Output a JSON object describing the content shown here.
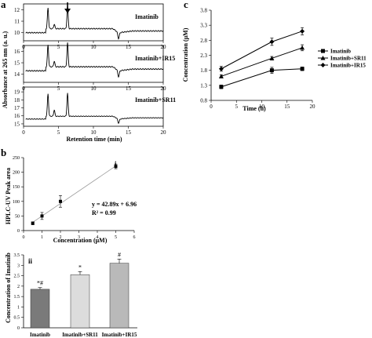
{
  "panel_letters": {
    "a": "a",
    "b": "b",
    "c": "c"
  },
  "colors": {
    "line": "#000000",
    "bar1": "#7a7a7a",
    "bar2": "#dcdcdc",
    "bar3": "#b9b9b9",
    "fit": "#999999"
  },
  "chart_data": [
    {
      "id": "panel-a-chromatograms",
      "type": "line",
      "xlabel": "Retention time (min)",
      "ylabel": "Absorbance at 265 nm (a. u.)",
      "xlim": [
        0,
        20
      ],
      "x_ticks": [
        "0",
        "5",
        "10",
        "15",
        "20"
      ],
      "series": [
        {
          "name": "Imatinib",
          "y_ticks": [
            "10",
            "11",
            "12"
          ],
          "ylim": [
            9.3,
            12.5
          ],
          "baseline": 10.0,
          "arrow_at_x": 6.3,
          "peaks": [
            {
              "x": 3.5,
              "h": 1.8
            },
            {
              "x": 4.4,
              "h": 0.4
            },
            {
              "x": 6.3,
              "h": 2.0
            }
          ],
          "dip_at_x": 13.6
        },
        {
          "name": "Imatinib+IR15",
          "y_ticks": [
            "14",
            "15",
            "16"
          ],
          "ylim": [
            13.3,
            16.5
          ],
          "baseline": 14.3,
          "peaks": [
            {
              "x": 3.5,
              "h": 1.9
            },
            {
              "x": 4.4,
              "h": 0.5
            },
            {
              "x": 6.3,
              "h": 2.1
            }
          ],
          "dip_at_x": 13.6
        },
        {
          "name": "Imatinib+SR11",
          "y_ticks": [
            "15",
            "16",
            "17",
            "18",
            "19"
          ],
          "ylim": [
            14.7,
            19.6
          ],
          "baseline": 15.6,
          "peaks": [
            {
              "x": 3.5,
              "h": 2.8
            },
            {
              "x": 4.4,
              "h": 0.8
            },
            {
              "x": 6.3,
              "h": 2.9
            }
          ],
          "dip_at_x": 13.6
        }
      ]
    },
    {
      "id": "panel-b-i-calibration",
      "type": "scatter",
      "sublabel": "i",
      "xlabel": "Concentration (μM)",
      "ylabel": "HPLC-UV Peak area",
      "xlim": [
        0,
        6
      ],
      "ylim": [
        0,
        250
      ],
      "x_ticks": [
        "0",
        "1",
        "2",
        "3",
        "4",
        "5",
        "6"
      ],
      "y_ticks": [
        "0",
        "50",
        "100",
        "150",
        "200",
        "250"
      ],
      "x": [
        0.5,
        1,
        2,
        5
      ],
      "y": [
        25,
        50,
        100,
        220
      ],
      "err": [
        5,
        12,
        20,
        8
      ],
      "annotation_equation": "y = 42.89x + 6.96",
      "annotation_r2": "R² = 0.99"
    },
    {
      "id": "panel-b-ii-bars",
      "type": "bar",
      "sublabel": "ii",
      "ylabel": "Concentration of Imatinib",
      "categories": [
        "Imatinib",
        "Imatinib+SR11",
        "Imatinib+IR15"
      ],
      "values": [
        1.85,
        2.55,
        3.1
      ],
      "err": [
        0.08,
        0.15,
        0.2
      ],
      "annotations": [
        "*#",
        "*",
        "#"
      ],
      "ylim": [
        0,
        3.5
      ],
      "y_ticks": [
        "0",
        "0.5",
        "1",
        "1.5",
        "2",
        "2.5",
        "3",
        "3.5"
      ]
    },
    {
      "id": "panel-c-time",
      "type": "line",
      "xlabel": "Time (h)",
      "ylabel": "Concentration (μM)",
      "xlim": [
        0,
        20
      ],
      "ylim": [
        0.8,
        3.8
      ],
      "x_ticks": [
        "0",
        "5",
        "10",
        "15",
        "20"
      ],
      "y_ticks": [
        "0.8",
        "1.3",
        "1.8",
        "2.3",
        "2.8",
        "3.3",
        "3.8"
      ],
      "x": [
        2,
        12,
        18
      ],
      "series": [
        {
          "name": "Imatinib",
          "marker": "square",
          "values": [
            1.25,
            1.8,
            1.85
          ],
          "err": [
            0.06,
            0.1,
            0.06
          ]
        },
        {
          "name": "Imatinib+SR11",
          "marker": "triangle",
          "values": [
            1.6,
            2.2,
            2.55
          ],
          "err": [
            0.05,
            0.06,
            0.1
          ]
        },
        {
          "name": "Imatinib+IR15",
          "marker": "diamond",
          "values": [
            1.85,
            2.75,
            3.1
          ],
          "err": [
            0.08,
            0.12,
            0.12
          ]
        }
      ]
    }
  ]
}
